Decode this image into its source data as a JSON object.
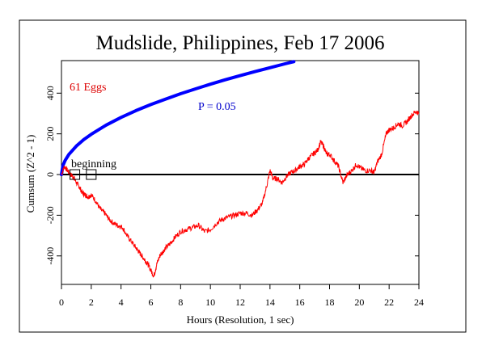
{
  "chart_data": {
    "type": "line",
    "title": "Mudslide, Philippines, Feb 17 2006",
    "xlabel": "Hours (Resolution, 1 sec)",
    "ylabel": "Cumsum (Z^2 - 1)",
    "xlim": [
      0,
      24
    ],
    "ylim": [
      -540,
      560
    ],
    "x_ticks": [
      0,
      2,
      4,
      6,
      8,
      10,
      12,
      14,
      16,
      18,
      20,
      22,
      24
    ],
    "y_ticks": [
      -400,
      -200,
      0,
      200,
      400
    ],
    "grid": false,
    "annotations": {
      "eggs": "61 Eggs",
      "probability": "P = 0.05",
      "marker": "beginning"
    },
    "marker_boxes_x": [
      0.9,
      2.0
    ],
    "colors": {
      "cumsum": "#ff0000",
      "probability_envelope": "#0000ff",
      "zero_line": "#000000"
    },
    "series": [
      {
        "role": "cumsum",
        "x": [
          0,
          0.2,
          0.4,
          0.6,
          0.8,
          1.0,
          1.2,
          1.4,
          1.6,
          1.8,
          2.0,
          2.3,
          2.6,
          2.9,
          3.2,
          3.5,
          3.8,
          4.1,
          4.4,
          4.7,
          5.0,
          5.2,
          5.4,
          5.6,
          5.8,
          6.0,
          6.2,
          6.4,
          6.6,
          6.8,
          7.0,
          7.3,
          7.6,
          8.0,
          8.4,
          8.8,
          9.2,
          9.6,
          10.0,
          10.4,
          10.8,
          11.2,
          11.6,
          12.0,
          12.4,
          12.8,
          13.2,
          13.5,
          13.8,
          14.0,
          14.2,
          14.5,
          14.8,
          15.1,
          15.4,
          15.7,
          16.0,
          16.3,
          16.6,
          16.9,
          17.2,
          17.4,
          17.6,
          17.8,
          18.0,
          18.3,
          18.6,
          18.9,
          19.2,
          19.5,
          19.8,
          20.1,
          20.4,
          20.8,
          21.0,
          21.2,
          21.5,
          21.8,
          22.0,
          22.3,
          22.6,
          22.9,
          23.2,
          23.5,
          23.8,
          24.0
        ],
        "y": [
          0,
          40,
          20,
          0,
          -10,
          -40,
          -60,
          -90,
          -100,
          -110,
          -100,
          -130,
          -170,
          -190,
          -220,
          -240,
          -250,
          -260,
          -300,
          -330,
          -360,
          -380,
          -400,
          -420,
          -440,
          -470,
          -500,
          -440,
          -400,
          -380,
          -360,
          -340,
          -310,
          -280,
          -270,
          -260,
          -250,
          -280,
          -270,
          -240,
          -220,
          -210,
          -200,
          -190,
          -190,
          -200,
          -170,
          -140,
          -50,
          20,
          -20,
          -20,
          -40,
          -10,
          10,
          20,
          40,
          50,
          80,
          100,
          120,
          160,
          140,
          100,
          100,
          70,
          40,
          -40,
          0,
          20,
          50,
          30,
          20,
          20,
          10,
          60,
          100,
          200,
          220,
          230,
          250,
          240,
          260,
          290,
          310,
          300
        ]
      },
      {
        "role": "probability_envelope",
        "x": [
          0,
          0.1,
          0.25,
          0.5,
          1,
          1.5,
          2,
          3,
          4,
          5,
          6,
          7,
          8,
          9,
          10,
          11,
          12,
          13,
          14,
          15,
          15.6
        ],
        "y": [
          0,
          44,
          70,
          99,
          140,
          172,
          198,
          243,
          281,
          314,
          344,
          371,
          397,
          421,
          444,
          466,
          486,
          506,
          525,
          544,
          555
        ]
      }
    ]
  }
}
